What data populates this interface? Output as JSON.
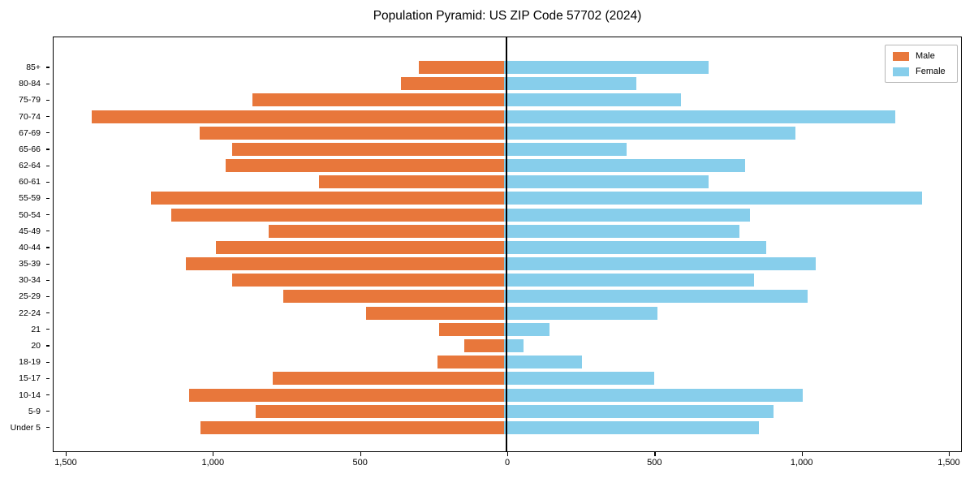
{
  "title": "Population Pyramid: US ZIP Code 57702 (2024)",
  "legend": {
    "male": "Male",
    "female": "Female"
  },
  "colors": {
    "male": "#E8773B",
    "female": "#87CEEB",
    "axis": "#000000",
    "background": "#ffffff"
  },
  "chart_data": {
    "type": "bar",
    "subtype": "population-pyramid",
    "title": "Population Pyramid: US ZIP Code 57702 (2024)",
    "xlabel": "",
    "ylabel": "",
    "grid": false,
    "legend_position": "upper right",
    "xlim": [
      -1544,
      1544
    ],
    "x_ticks": [
      -1500,
      -1000,
      -500,
      0,
      500,
      1000,
      1500
    ],
    "x_tick_labels": [
      "1,500",
      "1,000",
      "500",
      "0",
      "500",
      "1,000",
      "1,500"
    ],
    "categories_top_to_bottom": [
      "85+",
      "80-84",
      "75-79",
      "70-74",
      "67-69",
      "65-66",
      "62-64",
      "60-61",
      "55-59",
      "50-54",
      "45-49",
      "40-44",
      "35-39",
      "30-34",
      "25-29",
      "22-24",
      "21",
      "20",
      "18-19",
      "15-17",
      "10-14",
      "5-9",
      "Under 5"
    ],
    "series": [
      {
        "name": "Male",
        "side": "left",
        "color": "#E8773B",
        "values": [
          290,
          350,
          855,
          1400,
          1035,
          925,
          945,
          630,
          1200,
          1130,
          800,
          980,
          1080,
          925,
          750,
          470,
          220,
          135,
          225,
          785,
          1070,
          845,
          1030
        ]
      },
      {
        "name": "Female",
        "side": "right",
        "color": "#87CEEB",
        "values": [
          695,
          450,
          600,
          1330,
          990,
          415,
          820,
          695,
          1420,
          835,
          800,
          890,
          1060,
          850,
          1030,
          520,
          155,
          65,
          265,
          510,
          1015,
          915,
          865
        ]
      }
    ]
  }
}
